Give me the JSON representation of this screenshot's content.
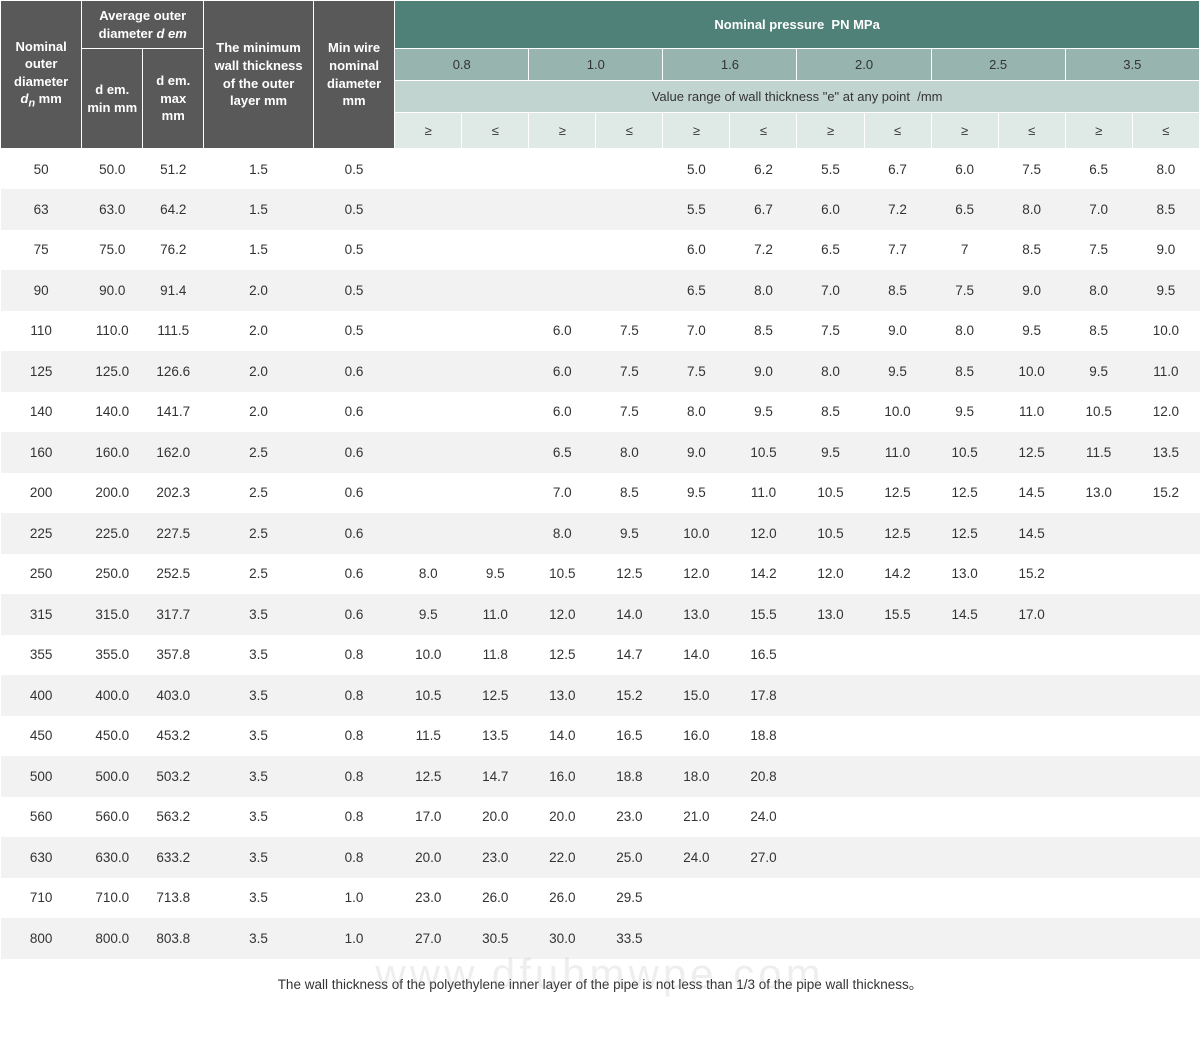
{
  "header": {
    "nominal_outer_diameter_html": "<b>Nominal<br>outer<br>diameter</b><br><span class='italic'>d<sub>n</sub></span> mm",
    "avg_outer_diameter_html": "<b>Average outer<br>diameter</b> <span class='italic'>d em</span>",
    "dem_min": "d em.<br>min mm",
    "dem_max": "d em.<br>max mm",
    "min_wall_html": "<b>The minimum<br>wall thickness<br>of the outer<br>layer</b> mm",
    "min_wire_html": "<b>Min wire<br>nominal<br>diameter</b><br>mm",
    "nominal_pressure_html": "<b>Nominal pressure</b> &nbsp;PN MPa",
    "value_range_html": "Value range of wall thickness \"e\" at any point &nbsp;/mm",
    "pressures": [
      "0.8",
      "1.0",
      "1.6",
      "2.0",
      "2.5",
      "3.5"
    ],
    "ge": "≥",
    "le": "≤"
  },
  "rows": [
    {
      "dn": "50",
      "min": "50.0",
      "max": "51.2",
      "wall": "1.5",
      "wire": "0.5",
      "v": [
        "",
        "",
        "",
        "",
        "5.0",
        "6.2",
        "5.5",
        "6.7",
        "6.0",
        "7.5",
        "6.5",
        "8.0"
      ]
    },
    {
      "dn": "63",
      "min": "63.0",
      "max": "64.2",
      "wall": "1.5",
      "wire": "0.5",
      "v": [
        "",
        "",
        "",
        "",
        "5.5",
        "6.7",
        "6.0",
        "7.2",
        "6.5",
        "8.0",
        "7.0",
        "8.5"
      ]
    },
    {
      "dn": "75",
      "min": "75.0",
      "max": "76.2",
      "wall": "1.5",
      "wire": "0.5",
      "v": [
        "",
        "",
        "",
        "",
        "6.0",
        "7.2",
        "6.5",
        "7.7",
        "7",
        "8.5",
        "7.5",
        "9.0"
      ]
    },
    {
      "dn": "90",
      "min": "90.0",
      "max": "91.4",
      "wall": "2.0",
      "wire": "0.5",
      "v": [
        "",
        "",
        "",
        "",
        "6.5",
        "8.0",
        "7.0",
        "8.5",
        "7.5",
        "9.0",
        "8.0",
        "9.5"
      ]
    },
    {
      "dn": "110",
      "min": "110.0",
      "max": "111.5",
      "wall": "2.0",
      "wire": "0.5",
      "v": [
        "",
        "",
        "6.0",
        "7.5",
        "7.0",
        "8.5",
        "7.5",
        "9.0",
        "8.0",
        "9.5",
        "8.5",
        "10.0"
      ]
    },
    {
      "dn": "125",
      "min": "125.0",
      "max": "126.6",
      "wall": "2.0",
      "wire": "0.6",
      "v": [
        "",
        "",
        "6.0",
        "7.5",
        "7.5",
        "9.0",
        "8.0",
        "9.5",
        "8.5",
        "10.0",
        "9.5",
        "11.0"
      ]
    },
    {
      "dn": "140",
      "min": "140.0",
      "max": "141.7",
      "wall": "2.0",
      "wire": "0.6",
      "v": [
        "",
        "",
        "6.0",
        "7.5",
        "8.0",
        "9.5",
        "8.5",
        "10.0",
        "9.5",
        "11.0",
        "10.5",
        "12.0"
      ]
    },
    {
      "dn": "160",
      "min": "160.0",
      "max": "162.0",
      "wall": "2.5",
      "wire": "0.6",
      "v": [
        "",
        "",
        "6.5",
        "8.0",
        "9.0",
        "10.5",
        "9.5",
        "11.0",
        "10.5",
        "12.5",
        "11.5",
        "13.5"
      ]
    },
    {
      "dn": "200",
      "min": "200.0",
      "max": "202.3",
      "wall": "2.5",
      "wire": "0.6",
      "v": [
        "",
        "",
        "7.0",
        "8.5",
        "9.5",
        "11.0",
        "10.5",
        "12.5",
        "12.5",
        "14.5",
        "13.0",
        "15.2"
      ]
    },
    {
      "dn": "225",
      "min": "225.0",
      "max": "227.5",
      "wall": "2.5",
      "wire": "0.6",
      "v": [
        "",
        "",
        "8.0",
        "9.5",
        "10.0",
        "12.0",
        "10.5",
        "12.5",
        "12.5",
        "14.5",
        "",
        ""
      ]
    },
    {
      "dn": "250",
      "min": "250.0",
      "max": "252.5",
      "wall": "2.5",
      "wire": "0.6",
      "v": [
        "8.0",
        "9.5",
        "10.5",
        "12.5",
        "12.0",
        "14.2",
        "12.0",
        "14.2",
        "13.0",
        "15.2",
        "",
        ""
      ]
    },
    {
      "dn": "315",
      "min": "315.0",
      "max": "317.7",
      "wall": "3.5",
      "wire": "0.6",
      "v": [
        "9.5",
        "11.0",
        "12.0",
        "14.0",
        "13.0",
        "15.5",
        "13.0",
        "15.5",
        "14.5",
        "17.0",
        "",
        ""
      ]
    },
    {
      "dn": "355",
      "min": "355.0",
      "max": "357.8",
      "wall": "3.5",
      "wire": "0.8",
      "v": [
        "10.0",
        "11.8",
        "12.5",
        "14.7",
        "14.0",
        "16.5",
        "",
        "",
        "",
        "",
        "",
        ""
      ]
    },
    {
      "dn": "400",
      "min": "400.0",
      "max": "403.0",
      "wall": "3.5",
      "wire": "0.8",
      "v": [
        "10.5",
        "12.5",
        "13.0",
        "15.2",
        "15.0",
        "17.8",
        "",
        "",
        "",
        "",
        "",
        ""
      ]
    },
    {
      "dn": "450",
      "min": "450.0",
      "max": "453.2",
      "wall": "3.5",
      "wire": "0.8",
      "v": [
        "11.5",
        "13.5",
        "14.0",
        "16.5",
        "16.0",
        "18.8",
        "",
        "",
        "",
        "",
        "",
        ""
      ]
    },
    {
      "dn": "500",
      "min": "500.0",
      "max": "503.2",
      "wall": "3.5",
      "wire": "0.8",
      "v": [
        "12.5",
        "14.7",
        "16.0",
        "18.8",
        "18.0",
        "20.8",
        "",
        "",
        "",
        "",
        "",
        ""
      ]
    },
    {
      "dn": "560",
      "min": "560.0",
      "max": "563.2",
      "wall": "3.5",
      "wire": "0.8",
      "v": [
        "17.0",
        "20.0",
        "20.0",
        "23.0",
        "21.0",
        "24.0",
        "",
        "",
        "",
        "",
        "",
        ""
      ]
    },
    {
      "dn": "630",
      "min": "630.0",
      "max": "633.2",
      "wall": "3.5",
      "wire": "0.8",
      "v": [
        "20.0",
        "23.0",
        "22.0",
        "25.0",
        "24.0",
        "27.0",
        "",
        "",
        "",
        "",
        "",
        ""
      ]
    },
    {
      "dn": "710",
      "min": "710.0",
      "max": "713.8",
      "wall": "3.5",
      "wire": "1.0",
      "v": [
        "23.0",
        "26.0",
        "26.0",
        "29.5",
        "",
        "",
        "",
        "",
        "",
        "",
        "",
        ""
      ]
    },
    {
      "dn": "800",
      "min": "800.0",
      "max": "803.8",
      "wall": "3.5",
      "wire": "1.0",
      "v": [
        "27.0",
        "30.5",
        "30.0",
        "33.5",
        "",
        "",
        "",
        "",
        "",
        "",
        "",
        ""
      ]
    }
  ],
  "footnote": "The wall thickness of the polyethylene inner layer of the pipe is not less than 1/3 of the pipe wall thickness。",
  "watermark": "www.dfuhmwpe.com",
  "colors": {
    "dark": "#595959",
    "teal_dark": "#4f8178",
    "teal": "#97b5ae",
    "teal_lighter": "#c2d4cf",
    "pale": "#dfeae6",
    "row_even": "#f2f2f2",
    "row_odd": "#ffffff"
  }
}
